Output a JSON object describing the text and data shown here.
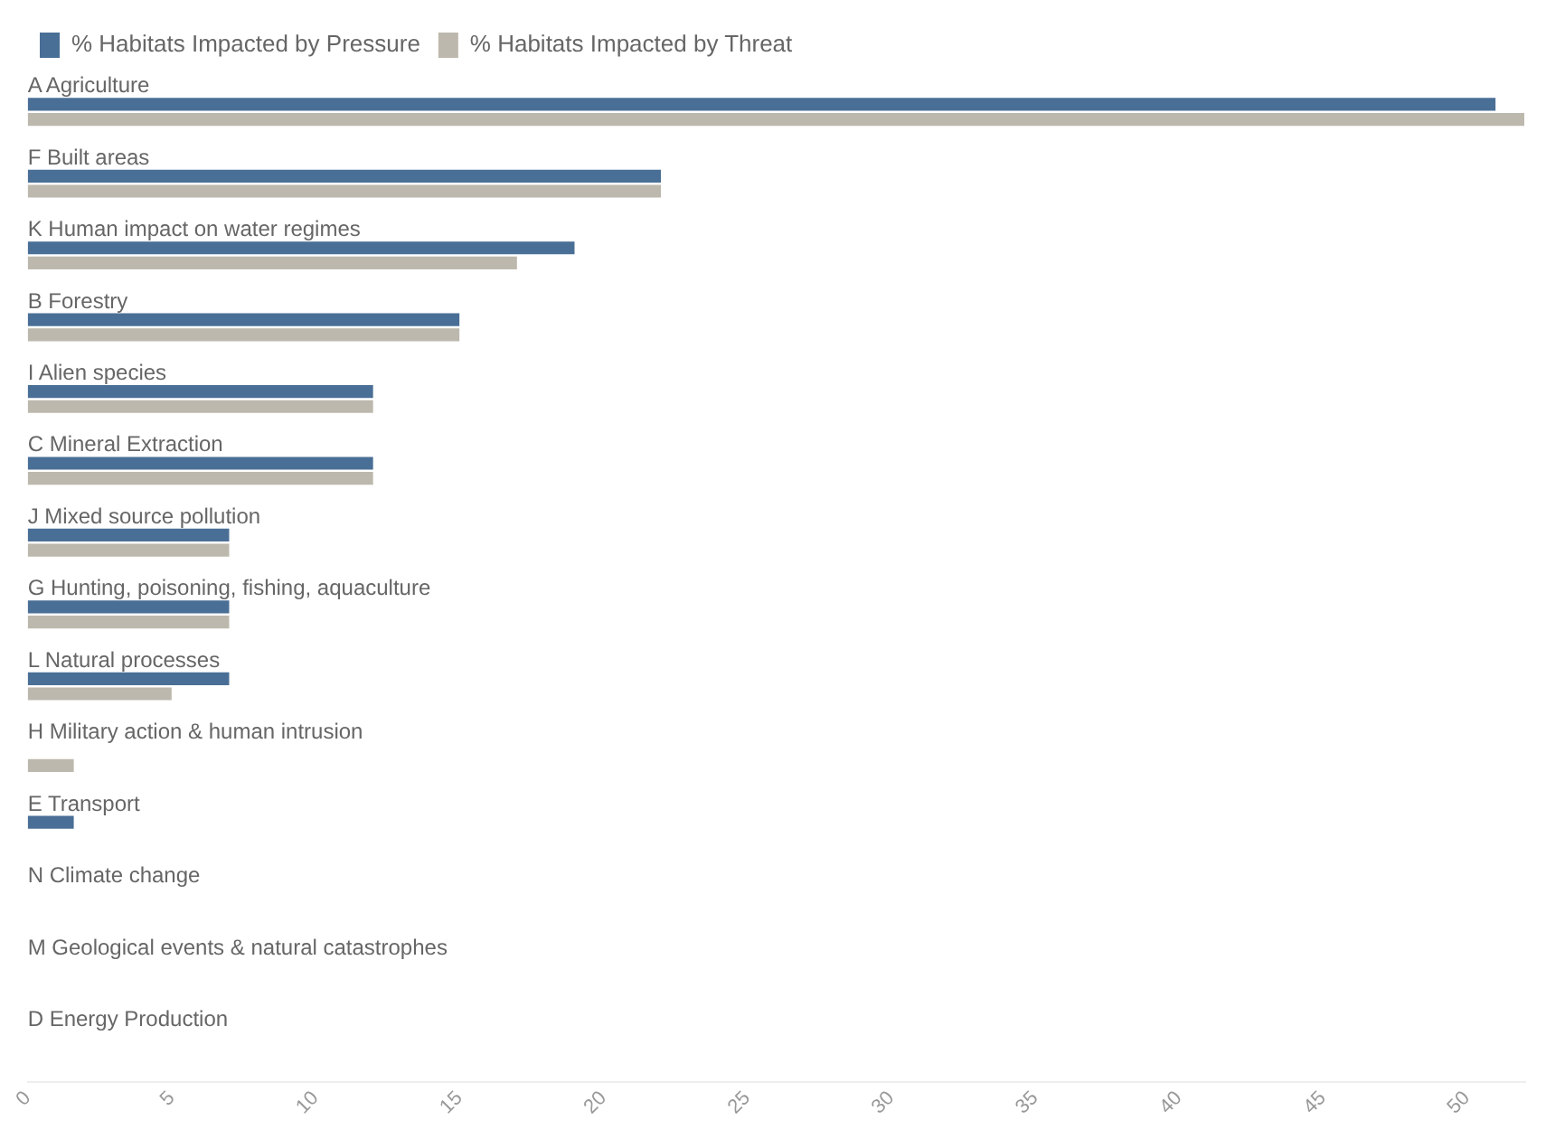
{
  "chart_data": {
    "type": "bar",
    "orientation": "horizontal",
    "categories": [
      "A Agriculture",
      "F Built areas",
      "K Human impact on water regimes",
      "B Forestry",
      "I Alien species",
      "C Mineral Extraction",
      "J Mixed source pollution",
      "G Hunting, poisoning, fishing, aquaculture",
      "L Natural processes",
      "H Military action & human intrusion",
      "E Transport",
      "N Climate change",
      "M Geological events & natural catastrophes",
      "D Energy Production"
    ],
    "series": [
      {
        "name": "% Habitats Impacted by Pressure",
        "color": "#4a6f96",
        "values": [
          51,
          22,
          19,
          15,
          12,
          12,
          7,
          7,
          7,
          0,
          1.6,
          0,
          0,
          0
        ]
      },
      {
        "name": "% Habitats Impacted by Threat",
        "color": "#bdb8ad",
        "values": [
          52,
          22,
          17,
          15,
          12,
          12,
          7,
          7,
          5,
          1.6,
          0,
          0,
          0,
          0
        ]
      }
    ],
    "xlim": [
      0,
      52
    ],
    "xticks": [
      0,
      5,
      10,
      15,
      20,
      25,
      30,
      35,
      40,
      45,
      50
    ],
    "grid": false,
    "legend": "top left"
  }
}
